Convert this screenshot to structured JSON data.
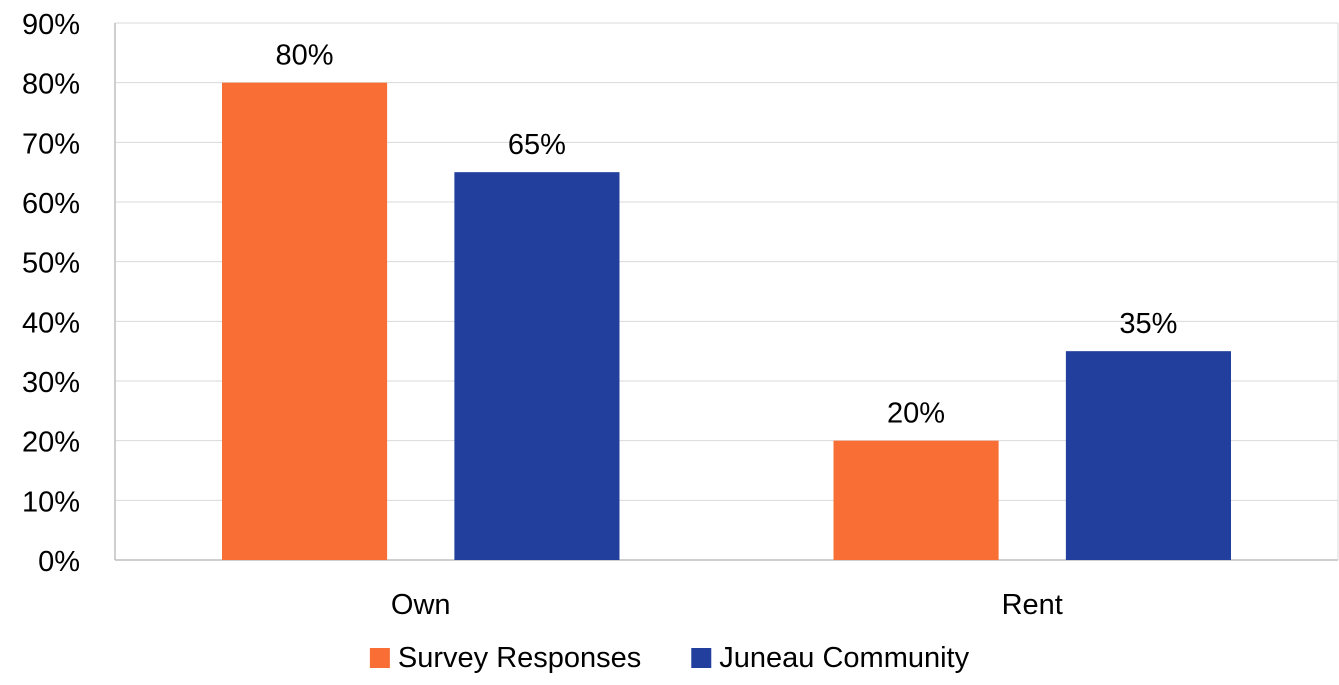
{
  "chart_data": {
    "type": "bar",
    "categories": [
      "Own",
      "Rent"
    ],
    "series": [
      {
        "name": "Survey Responses",
        "values": [
          80,
          20
        ],
        "color": "#F86E35"
      },
      {
        "name": "Juneau Community",
        "values": [
          65,
          35
        ],
        "color": "#223F9E"
      }
    ],
    "data_labels": [
      [
        "80%",
        "20%"
      ],
      [
        "65%",
        "35%"
      ]
    ],
    "y_ticks": [
      "0%",
      "10%",
      "20%",
      "30%",
      "40%",
      "50%",
      "60%",
      "70%",
      "80%",
      "90%"
    ],
    "ylim": [
      0,
      90
    ],
    "grid": true,
    "legend_position": "bottom"
  }
}
